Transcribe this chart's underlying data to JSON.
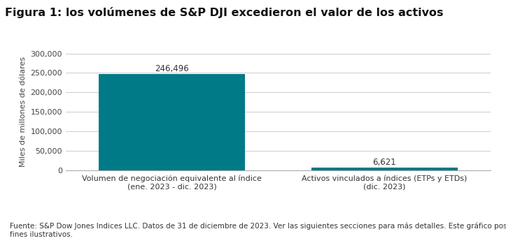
{
  "title": "Figura 1: los volúmenes de S&P DJI excedieron el valor de los activos",
  "categories": [
    "Volumen de negociación equivalente al índice\n(ene. 2023 - dic. 2023)",
    "Activos vinculados a índices (ETPs y ETDs)\n(dic. 2023)"
  ],
  "values": [
    246496,
    6621
  ],
  "labels": [
    "246,496",
    "6,621"
  ],
  "bar_color": "#007a87",
  "ylabel": "Miles de millones de dólares",
  "ylim": [
    0,
    300000
  ],
  "yticks": [
    0,
    50000,
    100000,
    150000,
    200000,
    250000,
    300000
  ],
  "ytick_labels": [
    "0",
    "50,000",
    "100,000",
    "150,000",
    "200,000",
    "250,000",
    "300,000"
  ],
  "background_color": "#ffffff",
  "grid_color": "#cccccc",
  "title_fontsize": 11.5,
  "label_fontsize": 8.5,
  "ylabel_fontsize": 8,
  "ytick_fontsize": 8,
  "xtick_fontsize": 8,
  "footnote": "Fuente: S&P Dow Jones Indices LLC. Datos de 31 de diciembre de 2023. Ver las siguientes secciones para más detalles. Este gráfico posee\nfines ilustrativos.",
  "footnote_fontsize": 7.5,
  "bar_width": 0.55,
  "x_positions": [
    0.3,
    1.1
  ]
}
